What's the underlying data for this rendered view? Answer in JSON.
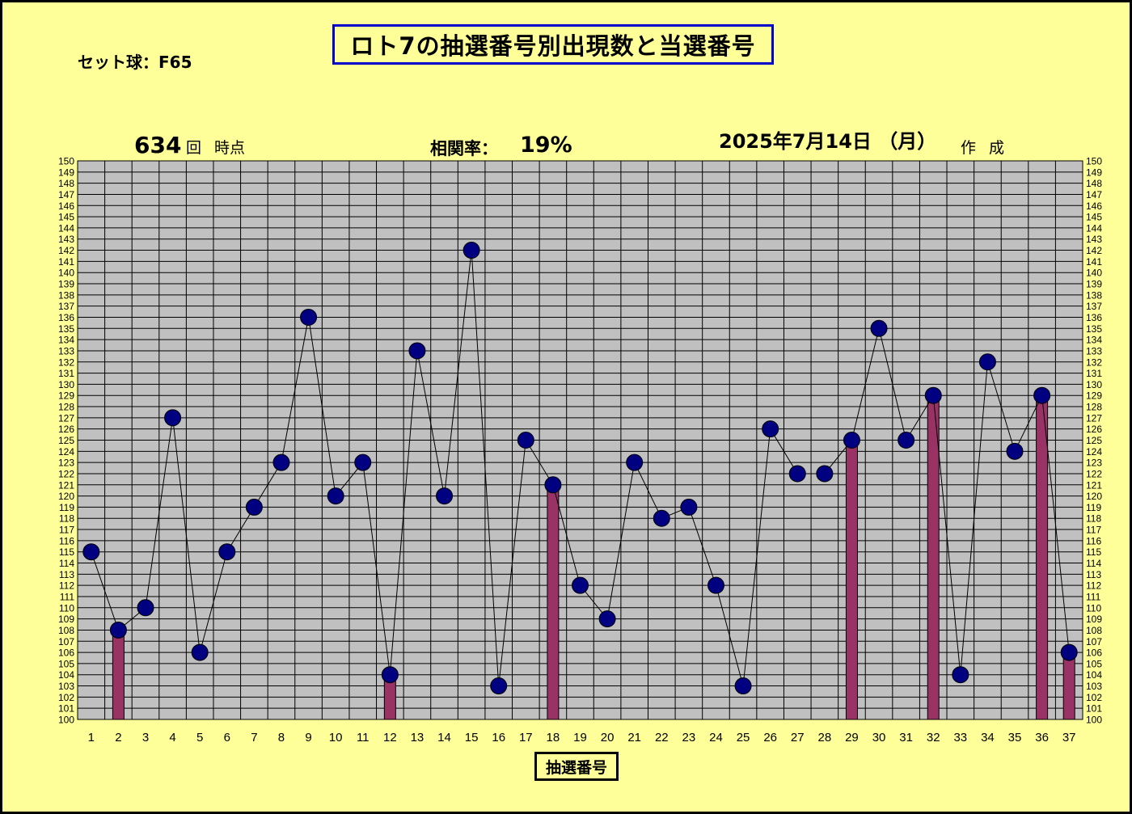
{
  "set_ball": "セット球：F65",
  "title": "ロト7の抽選番号別出現数と当選番号",
  "draw_no": "634",
  "draw_suffix": "回 時点",
  "corr_label": "相関率：",
  "corr_value": "19%",
  "date": "2025年7月14日 （月）",
  "made": "作 成",
  "colors": {
    "background": "#ffff99",
    "plot": "#c0c0c0",
    "marker": "#000080",
    "bar": "#993366",
    "title_border": "#0000cc"
  },
  "chart_data": {
    "type": "line",
    "title": "ロト7の抽選番号別出現数と当選番号",
    "xlabel": "抽選番号",
    "ylabel": "",
    "ylim": [
      100,
      150
    ],
    "grid": true,
    "categories": [
      "1",
      "2",
      "3",
      "4",
      "5",
      "6",
      "7",
      "8",
      "9",
      "10",
      "11",
      "12",
      "13",
      "14",
      "15",
      "16",
      "17",
      "18",
      "19",
      "20",
      "21",
      "22",
      "23",
      "24",
      "25",
      "26",
      "27",
      "28",
      "29",
      "30",
      "31",
      "32",
      "33",
      "34",
      "35",
      "36",
      "37"
    ],
    "counts": [
      115,
      108,
      110,
      127,
      106,
      115,
      119,
      123,
      136,
      120,
      123,
      104,
      133,
      120,
      142,
      103,
      125,
      121,
      112,
      109,
      123,
      118,
      119,
      112,
      103,
      126,
      122,
      122,
      125,
      135,
      125,
      129,
      104,
      132,
      124,
      129,
      106
    ],
    "winning_numbers": [
      2,
      12,
      18,
      29,
      32,
      36,
      37
    ]
  }
}
